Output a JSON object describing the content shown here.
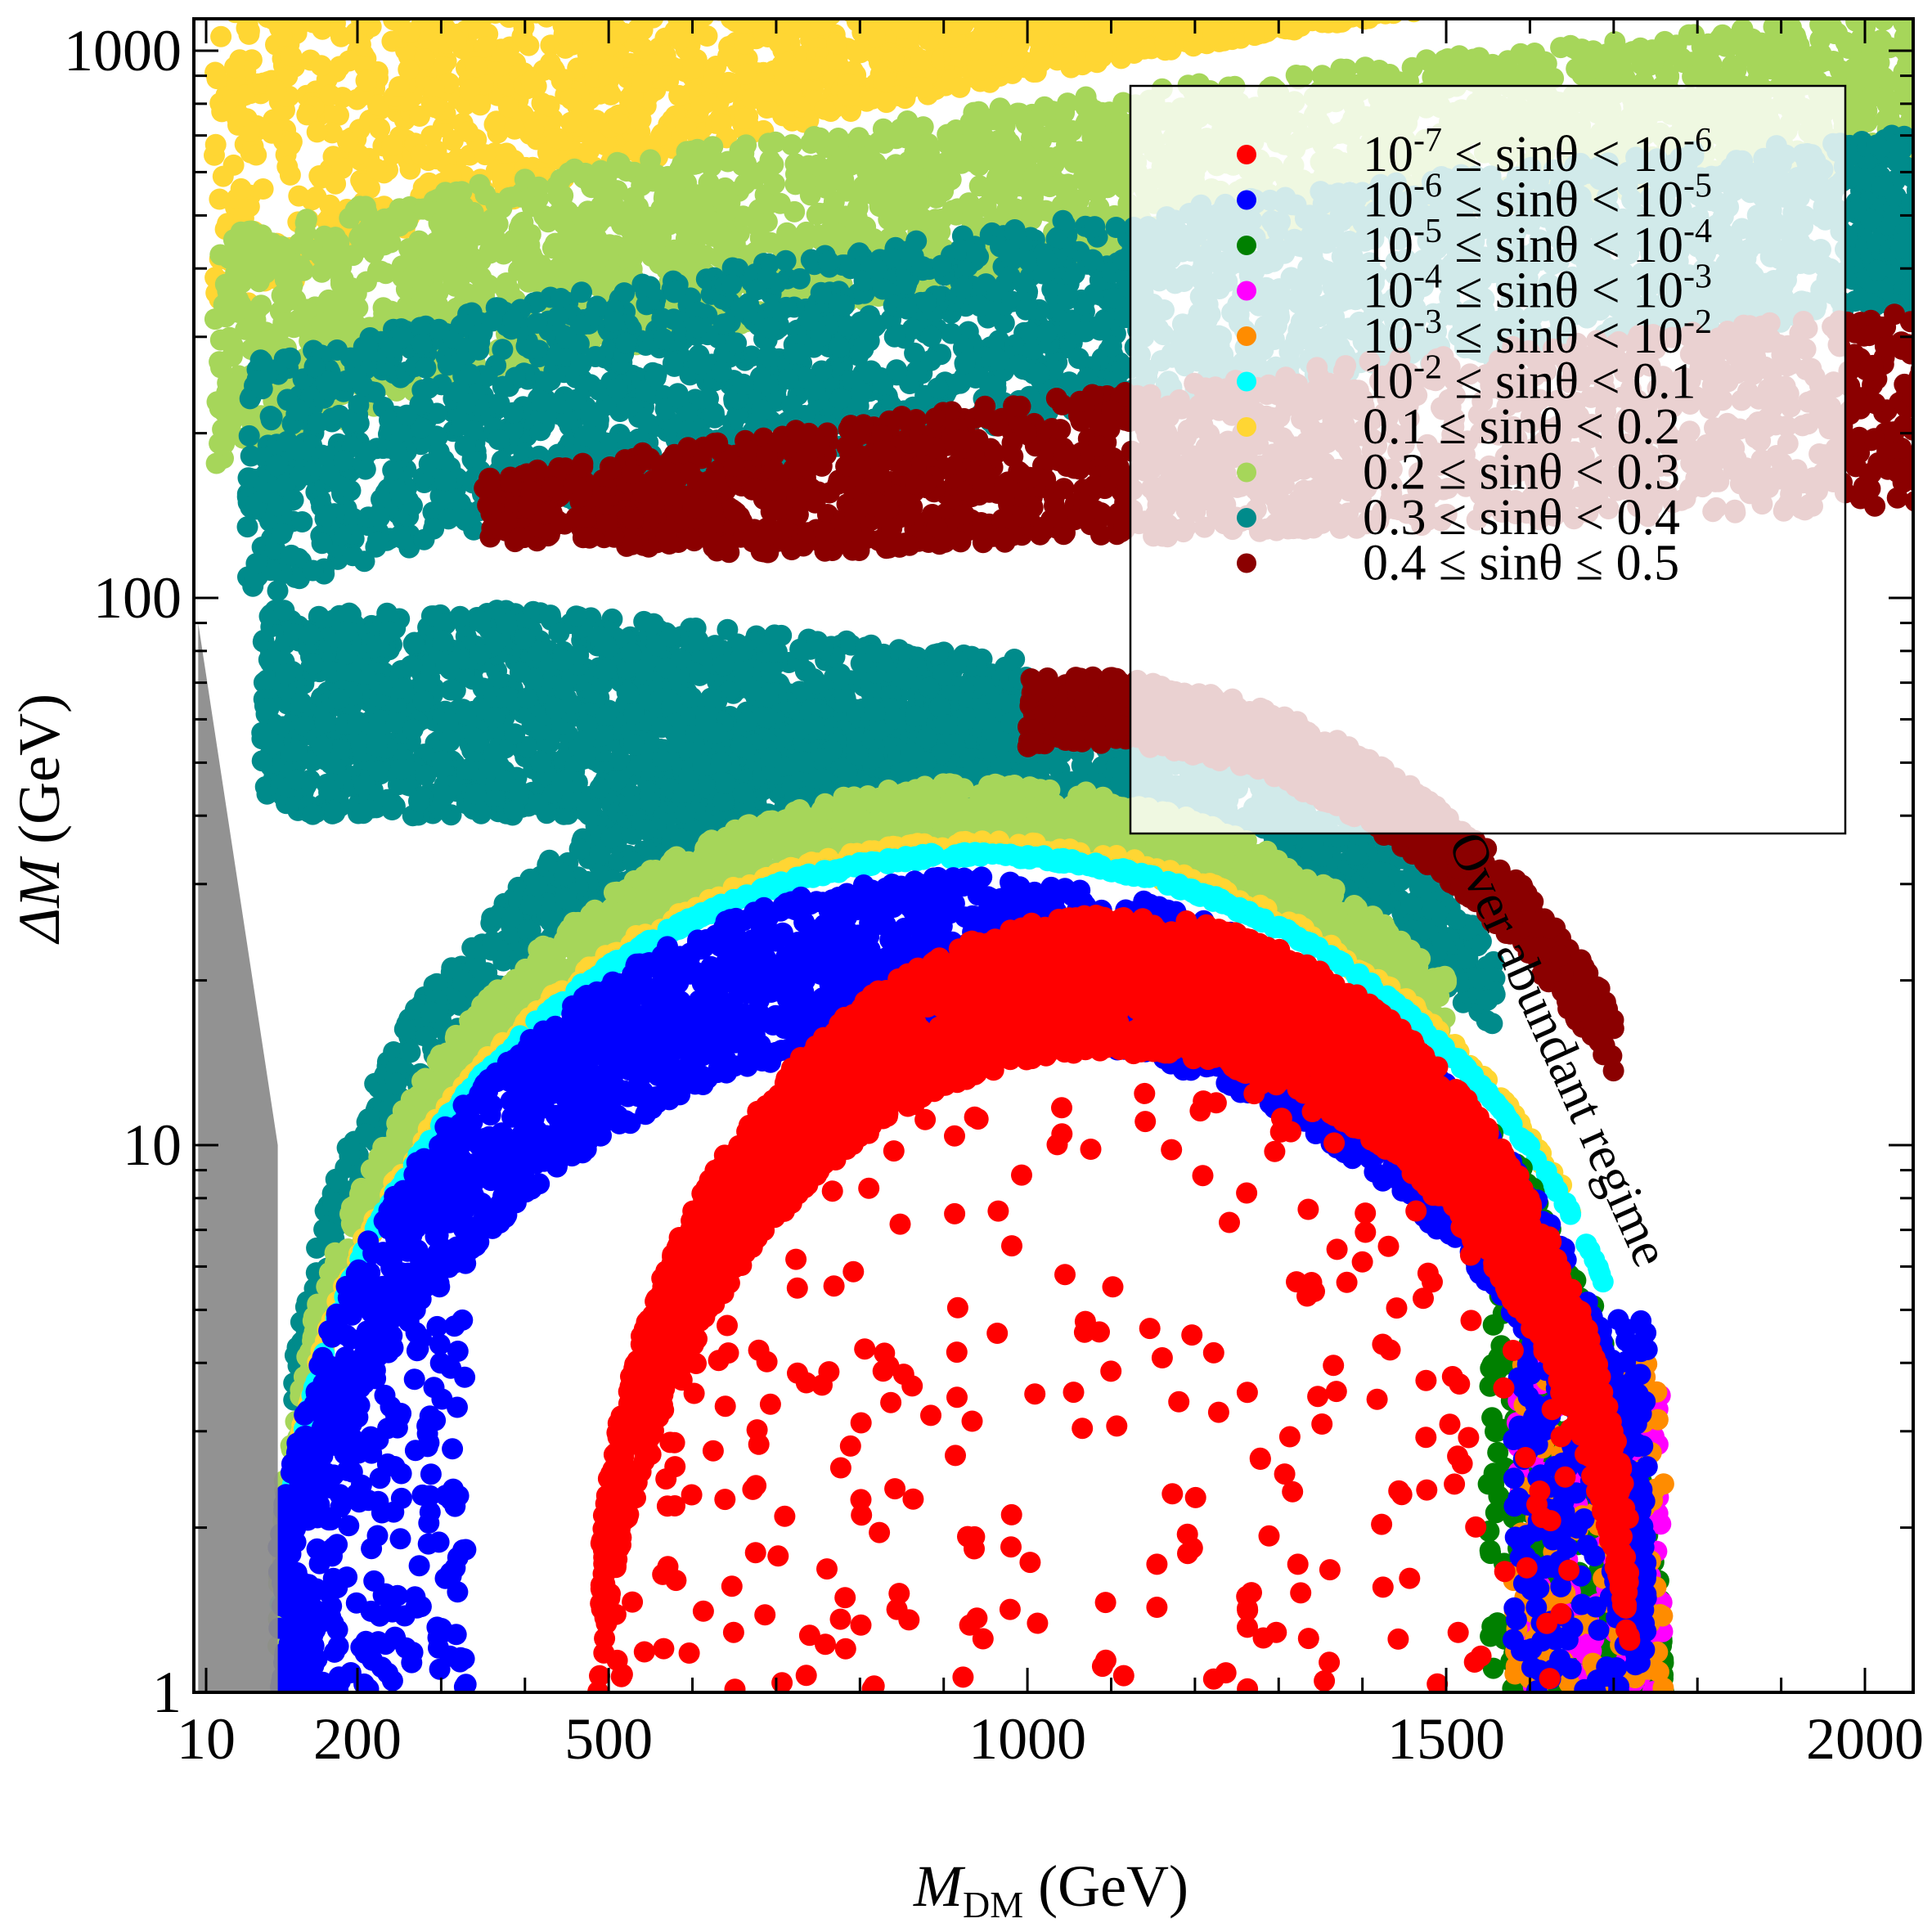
{
  "chart_data": {
    "type": "scatter",
    "xlabel": "M",
    "xlabel_sub": "DM",
    "xlabel_unit": "(GeV)",
    "ylabel": "ΔM",
    "ylabel_unit": "(GeV)",
    "xlim": [
      0,
      2100
    ],
    "ylim": [
      1,
      1200
    ],
    "yscale": "log",
    "x_ticks": [
      {
        "value": 10,
        "label": "10"
      },
      {
        "value": 200,
        "label": "200"
      },
      {
        "value": 500,
        "label": "500"
      },
      {
        "value": 1000,
        "label": "1000"
      },
      {
        "value": 1500,
        "label": "1500"
      },
      {
        "value": 2000,
        "label": "2000"
      }
    ],
    "y_ticks": [
      {
        "value": 1,
        "label": "1"
      },
      {
        "value": 10,
        "label": "10"
      },
      {
        "value": 100,
        "label": "100"
      },
      {
        "value": 1000,
        "label": "1000"
      }
    ],
    "legend_position": "top-right",
    "annotation": "Over abundant regime",
    "excluded_region": {
      "color": "#8c8c8c",
      "x_range": [
        0,
        100
      ]
    },
    "series": [
      {
        "name": "10^-7 ≤ sinθ < 10^-6",
        "label_parts": [
          "10",
          "-7",
          " ≤ sinθ < 10",
          "-6"
        ],
        "color": "#ff0000",
        "band": {
          "x_range": [
            490,
            1720
          ],
          "y_max_center": 26
        }
      },
      {
        "name": "10^-6 ≤ sinθ < 10^-5",
        "label_parts": [
          "10",
          "-6",
          " ≤ sinθ < 10",
          "-5"
        ],
        "color": "#0000ff",
        "band": {
          "x_range": [
            90,
            1740
          ],
          "y_max_center": 32
        }
      },
      {
        "name": "10^-5 ≤ sinθ < 10^-4",
        "label_parts": [
          "10",
          "-5",
          " ≤ sinθ < 10",
          "-4"
        ],
        "color": "#008000",
        "band": {
          "x_range": [
            90,
            1740
          ],
          "y_max_center": 33
        }
      },
      {
        "name": "10^-4 ≤ sinθ < 10^-3",
        "label_parts": [
          "10",
          "-4",
          " ≤ sinθ < 10",
          "-3"
        ],
        "color": "#ff00ff",
        "band": {
          "x_range": [
            90,
            1740
          ],
          "y_max_center": 33
        }
      },
      {
        "name": "10^-3 ≤ sinθ < 10^-2",
        "label_parts": [
          "10",
          "-3",
          " ≤ sinθ < 10",
          "-2"
        ],
        "color": "#ff8c00",
        "band": {
          "x_range": [
            90,
            1740
          ],
          "y_max_center": 34
        }
      },
      {
        "name": "10^-2 ≤ sinθ < 0.1",
        "label_parts": [
          "10",
          "-2",
          " ≤ sinθ < 0.1",
          ""
        ],
        "color": "#00ffff",
        "band": {
          "x_range": [
            90,
            1740
          ],
          "y_max_center": 34
        }
      },
      {
        "name": "0.1 ≤ sinθ < 0.2",
        "label_parts": [
          "0.1 ≤ sinθ < 0.2",
          "",
          "",
          ""
        ],
        "color": "#ffd633",
        "band": {
          "x_range": [
            20,
            2100
          ],
          "y_low": 450,
          "y_high": 1200
        }
      },
      {
        "name": "0.2 ≤ sinθ < 0.3",
        "label_parts": [
          "0.2 ≤ sinθ < 0.3",
          "",
          "",
          ""
        ],
        "color": "#a6d65a",
        "band": {
          "x_range": [
            20,
            2100
          ],
          "y_low": 250,
          "y_high": 800
        }
      },
      {
        "name": "0.3 ≤ sinθ < 0.4",
        "label_parts": [
          "0.3 ≤ sinθ < 0.4",
          "",
          "",
          ""
        ],
        "color": "#008b8b",
        "band": {
          "x_range": [
            60,
            2100
          ],
          "y_low": 150,
          "y_high": 500
        }
      },
      {
        "name": "0.4 ≤ sinθ ≤ 0.5",
        "label_parts": [
          "0.4 ≤ sinθ ≤ 0.5",
          "",
          "",
          ""
        ],
        "color": "#8b0000",
        "band": {
          "x_range": [
            300,
            2100
          ],
          "y_low": 100,
          "y_high": 350
        }
      }
    ]
  }
}
